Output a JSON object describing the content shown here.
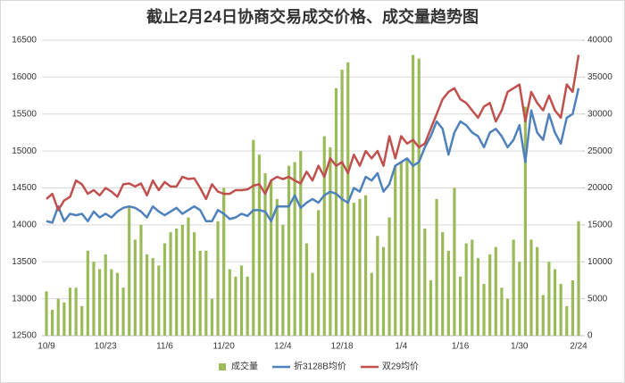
{
  "chart_data": {
    "type": "combo",
    "title": "截止2月24日协商交易成交价格、成交量趋势图",
    "categories": [
      "10/9",
      null,
      null,
      null,
      null,
      null,
      null,
      null,
      null,
      null,
      "10/23",
      null,
      null,
      null,
      null,
      null,
      null,
      null,
      null,
      null,
      "11/6",
      null,
      null,
      null,
      null,
      null,
      null,
      null,
      null,
      null,
      "11/20",
      null,
      null,
      null,
      null,
      null,
      null,
      null,
      null,
      null,
      "12/4",
      null,
      null,
      null,
      null,
      null,
      null,
      null,
      null,
      null,
      "12/18",
      null,
      null,
      null,
      null,
      null,
      null,
      null,
      null,
      null,
      "1/4",
      null,
      null,
      null,
      null,
      null,
      null,
      null,
      null,
      null,
      "1/16",
      null,
      null,
      null,
      null,
      null,
      null,
      null,
      null,
      null,
      "1/30",
      null,
      null,
      null,
      null,
      null,
      null,
      null,
      null,
      null,
      "2/24"
    ],
    "series": [
      {
        "name": "成交量",
        "type": "bar",
        "axis": "y2",
        "color": "#9bbb59",
        "values": [
          6000,
          3500,
          5000,
          4500,
          6500,
          6500,
          4000,
          11500,
          10000,
          9000,
          11000,
          9000,
          8500,
          6500,
          17500,
          13000,
          15000,
          11000,
          10500,
          9500,
          12500,
          14000,
          14500,
          15000,
          16000,
          14000,
          11500,
          11500,
          5000,
          15500,
          20000,
          9000,
          8000,
          9500,
          8000,
          26500,
          24500,
          22000,
          21000,
          18500,
          15000,
          23000,
          23500,
          25000,
          12500,
          8500,
          17000,
          27000,
          25500,
          33500,
          36000,
          37000,
          18000,
          18500,
          19000,
          8500,
          13500,
          12000,
          16000,
          23000,
          23500,
          24000,
          38000,
          37500,
          14500,
          7500,
          18500,
          14000,
          11500,
          20000,
          8000,
          12500,
          13000,
          10500,
          7000,
          11000,
          12000,
          6500,
          5000,
          13000,
          10000,
          31000,
          13000,
          12000,
          5500,
          10000,
          9000,
          7000,
          4000,
          7500,
          15500
        ]
      },
      {
        "name": "折3128B均价",
        "type": "line",
        "color": "#4f81bd",
        "values": [
          14050,
          14030,
          14250,
          14050,
          14150,
          14130,
          14150,
          14050,
          14180,
          14100,
          14150,
          14100,
          14180,
          14230,
          14250,
          14230,
          14180,
          14100,
          14250,
          14180,
          14130,
          14180,
          14230,
          14150,
          14200,
          14250,
          14200,
          14050,
          14050,
          14200,
          14150,
          14080,
          14100,
          14150,
          14120,
          14200,
          14200,
          14180,
          14050,
          14250,
          14250,
          14250,
          14400,
          14230,
          14300,
          14350,
          14300,
          14400,
          14450,
          14420,
          14350,
          14300,
          14500,
          14450,
          14650,
          14600,
          14700,
          14450,
          14550,
          14800,
          14850,
          14900,
          14800,
          14850,
          15050,
          15200,
          15400,
          15300,
          14950,
          15250,
          15400,
          15350,
          15250,
          15200,
          15050,
          15250,
          15300,
          15200,
          15050,
          15150,
          15350,
          14850,
          15550,
          15250,
          15150,
          15500,
          15250,
          15100,
          15450,
          15500,
          15850
        ]
      },
      {
        "name": "双29均价",
        "type": "line",
        "color": "#c0504d",
        "values": [
          14350,
          14420,
          14200,
          14330,
          14380,
          14600,
          14550,
          14420,
          14470,
          14400,
          14500,
          14450,
          14380,
          14550,
          14560,
          14520,
          14560,
          14400,
          14600,
          14470,
          14580,
          14520,
          14520,
          14650,
          14620,
          14630,
          14500,
          14350,
          14550,
          14450,
          14420,
          14420,
          14470,
          14470,
          14480,
          14530,
          14550,
          14420,
          14600,
          14650,
          14620,
          14650,
          14600,
          14560,
          14720,
          14600,
          14800,
          14650,
          14900,
          14800,
          14850,
          14700,
          14950,
          14800,
          15000,
          14900,
          15000,
          14800,
          15200,
          14900,
          15200,
          15100,
          15150,
          15050,
          15100,
          15300,
          15500,
          15700,
          15800,
          15850,
          15700,
          15650,
          15550,
          15450,
          15600,
          15650,
          15400,
          15550,
          15800,
          15850,
          15900,
          15400,
          15800,
          15650,
          15550,
          15750,
          15550,
          15450,
          15900,
          15800,
          16300
        ]
      }
    ],
    "ylim": [
      12500,
      16500
    ],
    "yticks": [
      12500,
      13000,
      13500,
      14000,
      14500,
      15000,
      15500,
      16000,
      16500
    ],
    "y2lim": [
      0,
      40000
    ],
    "y2ticks": [
      0,
      5000,
      10000,
      15000,
      20000,
      25000,
      30000,
      35000,
      40000
    ],
    "grid": true,
    "legend": "bottom"
  }
}
